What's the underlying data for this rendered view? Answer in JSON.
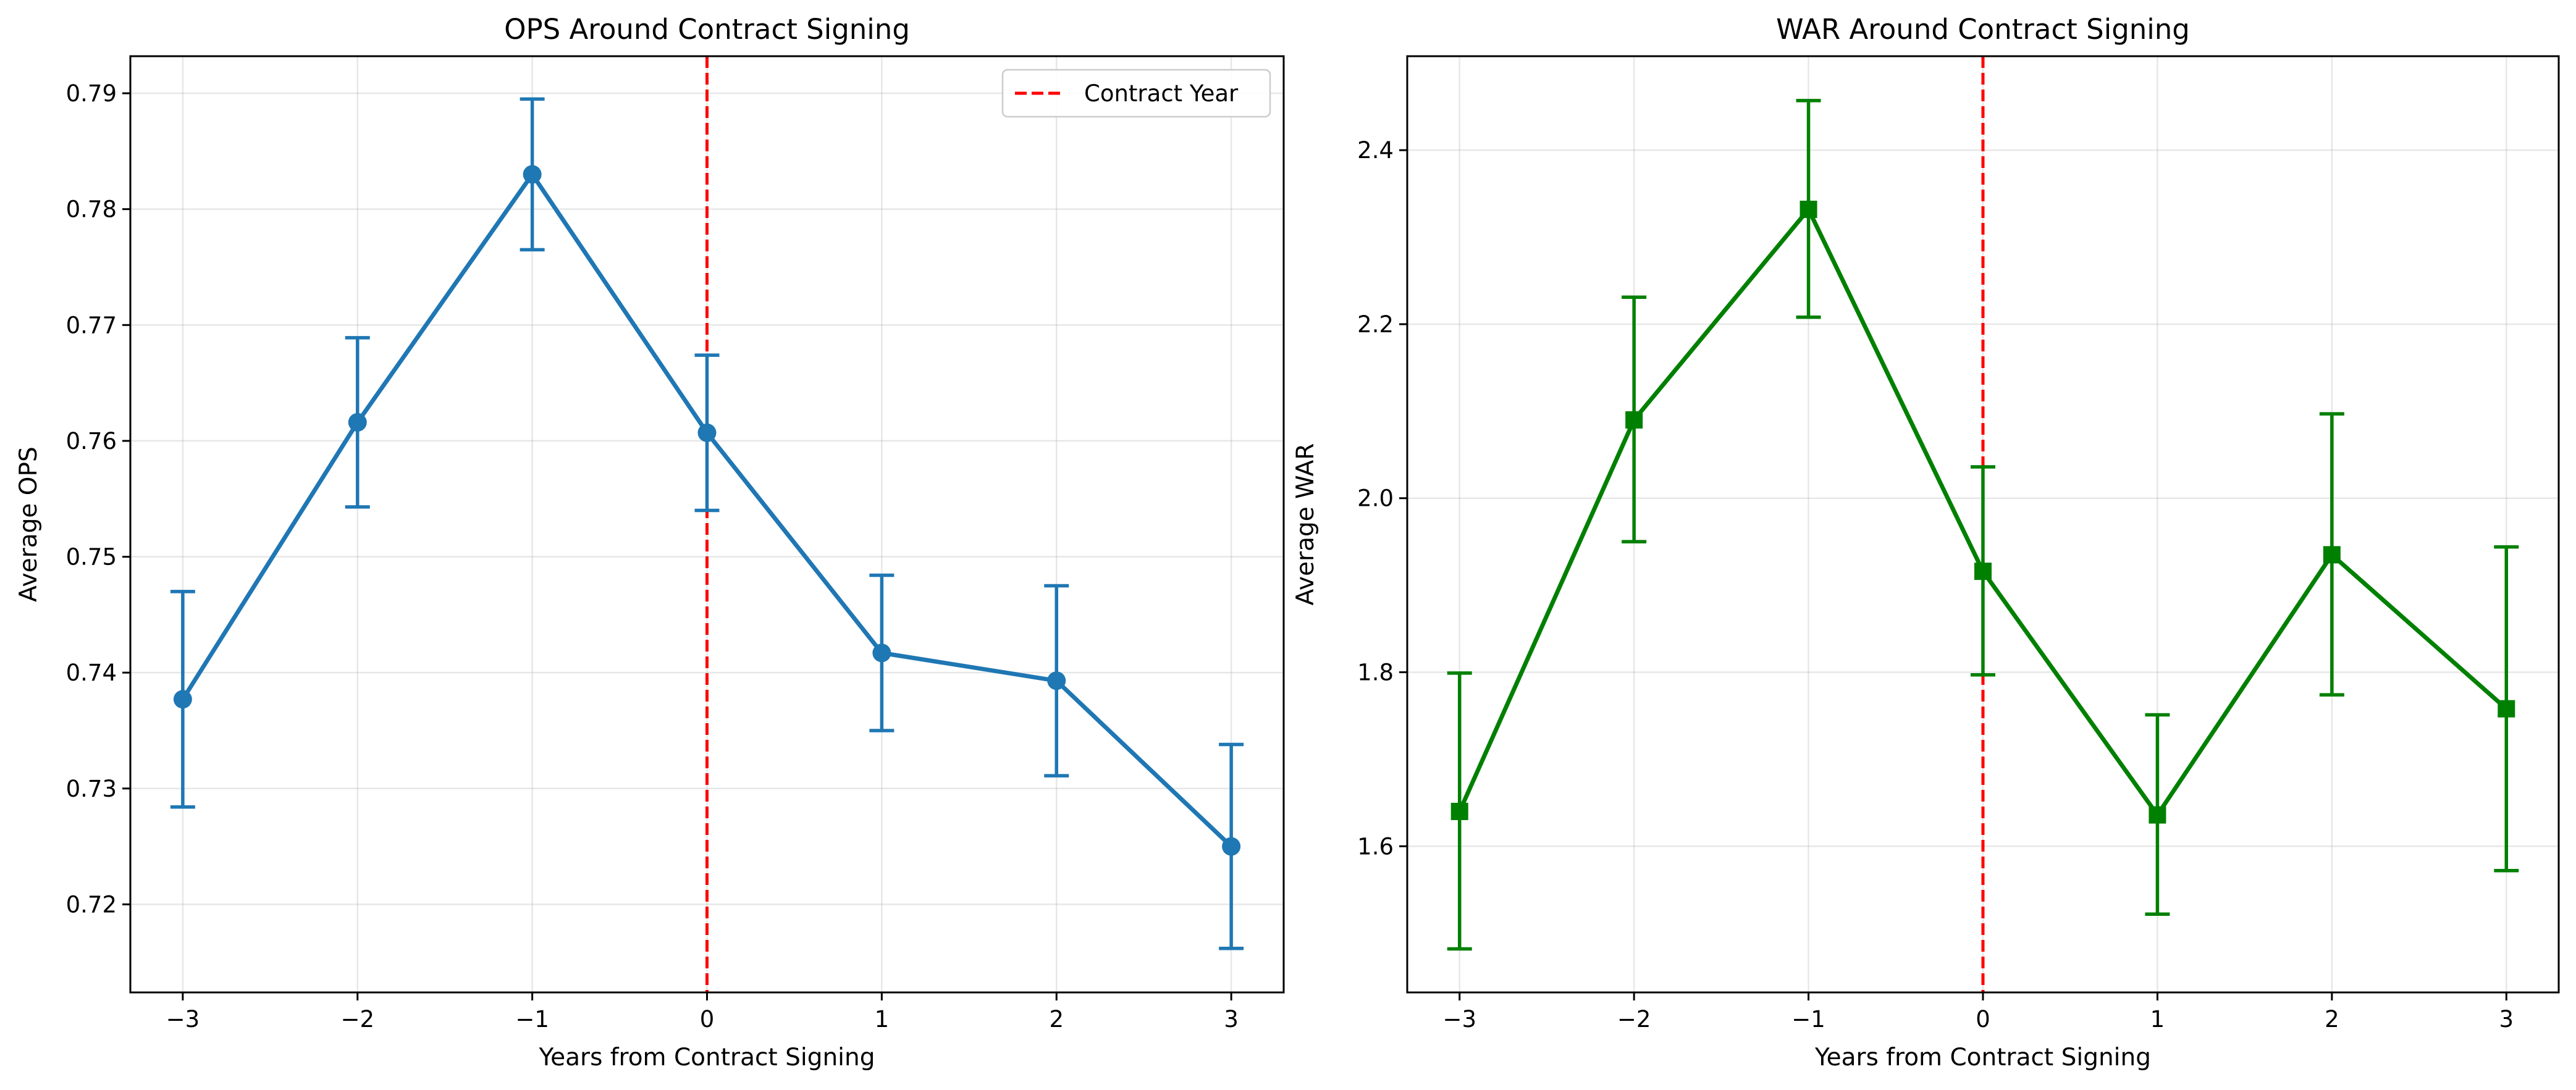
{
  "chart_data": [
    {
      "type": "line",
      "title": "OPS Around Contract Signing",
      "xlabel": "Years from Contract Signing",
      "ylabel": "Average OPS",
      "xlim": [
        -3.3,
        3.3
      ],
      "ylim": [
        0.7124,
        0.7932
      ],
      "xticks": [
        -3,
        -2,
        -1,
        0,
        1,
        2,
        3
      ],
      "xtick_labels": [
        "−3",
        "−2",
        "−1",
        "0",
        "1",
        "2",
        "3"
      ],
      "yticks": [
        0.72,
        0.73,
        0.74,
        0.75,
        0.76,
        0.77,
        0.78,
        0.79
      ],
      "ytick_labels": [
        "0.72",
        "0.73",
        "0.74",
        "0.75",
        "0.76",
        "0.77",
        "0.78",
        "0.79"
      ],
      "grid": true,
      "legend_position": "top-right",
      "colors": {
        "series": "#1f77b4",
        "reference": "#ff0000"
      },
      "series": [
        {
          "marker": "circle",
          "x": [
            -3,
            -2,
            -1,
            0,
            1,
            2,
            3
          ],
          "y": [
            0.7377,
            0.7616,
            0.783,
            0.7607,
            0.7417,
            0.7393,
            0.725
          ],
          "err_low": [
            0.7284,
            0.7543,
            0.7765,
            0.754,
            0.735,
            0.7311,
            0.7162
          ],
          "err_high": [
            0.747,
            0.7689,
            0.7895,
            0.7674,
            0.7484,
            0.7475,
            0.7338
          ]
        }
      ],
      "reference_line": {
        "x": 0,
        "label": "Contract Year",
        "style": "dashed"
      }
    },
    {
      "type": "line",
      "title": "WAR Around Contract Signing",
      "xlabel": "Years from Contract Signing",
      "ylabel": "Average WAR",
      "xlim": [
        -3.3,
        3.3
      ],
      "ylim": [
        1.432,
        2.508
      ],
      "xticks": [
        -3,
        -2,
        -1,
        0,
        1,
        2,
        3
      ],
      "xtick_labels": [
        "−3",
        "−2",
        "−1",
        "0",
        "1",
        "2",
        "3"
      ],
      "yticks": [
        1.6,
        1.8,
        2.0,
        2.2,
        2.4
      ],
      "ytick_labels": [
        "1.6",
        "1.8",
        "2.0",
        "2.2",
        "2.4"
      ],
      "grid": true,
      "colors": {
        "series": "#008000",
        "reference": "#ff0000"
      },
      "series": [
        {
          "marker": "square",
          "x": [
            -3,
            -2,
            -1,
            0,
            1,
            2,
            3
          ],
          "y": [
            1.64,
            2.09,
            2.332,
            1.916,
            1.636,
            1.935,
            1.758
          ],
          "err_low": [
            1.482,
            1.95,
            2.208,
            1.797,
            1.522,
            1.774,
            1.572
          ],
          "err_high": [
            1.799,
            2.231,
            2.457,
            2.036,
            1.751,
            2.097,
            1.944
          ]
        }
      ],
      "reference_line": {
        "x": 0,
        "style": "dashed"
      }
    }
  ]
}
